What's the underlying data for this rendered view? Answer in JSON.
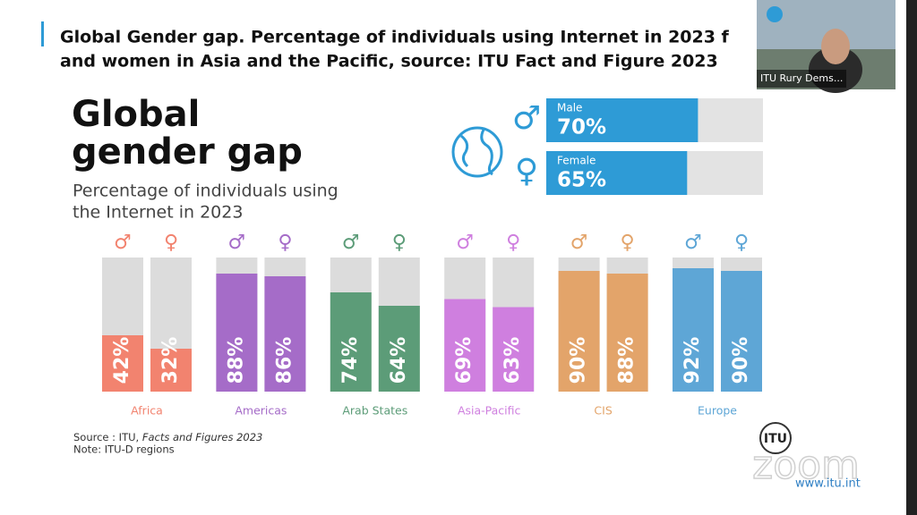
{
  "header": {
    "title_lines": [
      "Global Gender gap. Percentage of individuals using Internet in 2023 f",
      "and women in Asia and the Pacific, source: ITU Fact and Figure 2023"
    ]
  },
  "video": {
    "participant": "ITU Rury Dems..."
  },
  "slide": {
    "title_lines": [
      "Global",
      "gender gap"
    ],
    "subtitle_lines": [
      "Percentage of individuals using",
      "the Internet in 2023"
    ],
    "source_prefix": "Source : ITU, ",
    "source_italic": "Facts and Figures 2023",
    "note": "Note: ITU-D regions",
    "logo": "ITU",
    "url": "www.itu.int",
    "watermark": "zoom"
  },
  "summary": {
    "color": "#2e9bd6",
    "track": "#e3e3e3",
    "items": [
      {
        "label": "Male",
        "symbol": "♂",
        "value": 70,
        "value_label": "70%"
      },
      {
        "label": "Female",
        "symbol": "♀",
        "value": 65,
        "value_label": "65%"
      }
    ]
  },
  "chart_data": {
    "type": "bar",
    "categories": [
      "Africa",
      "Americas",
      "Arab States",
      "Asia-Pacific",
      "CIS",
      "Europe"
    ],
    "colors": [
      "#f2836f",
      "#a56cc8",
      "#5c9c78",
      "#cf7fdf",
      "#e3a46a",
      "#5ea6d6"
    ],
    "track": "#dcdcdc",
    "ylim": [
      0,
      100
    ],
    "series": [
      {
        "symbol": "♂",
        "values": [
          42,
          88,
          74,
          69,
          90,
          92
        ],
        "value_labels": [
          "42%",
          "88%",
          "74%",
          "69%",
          "90%",
          "92%"
        ]
      },
      {
        "symbol": "♀",
        "values": [
          32,
          86,
          64,
          63,
          88,
          90
        ],
        "value_labels": [
          "32%",
          "86%",
          "64%",
          "63%",
          "88%",
          "90%"
        ]
      }
    ]
  }
}
